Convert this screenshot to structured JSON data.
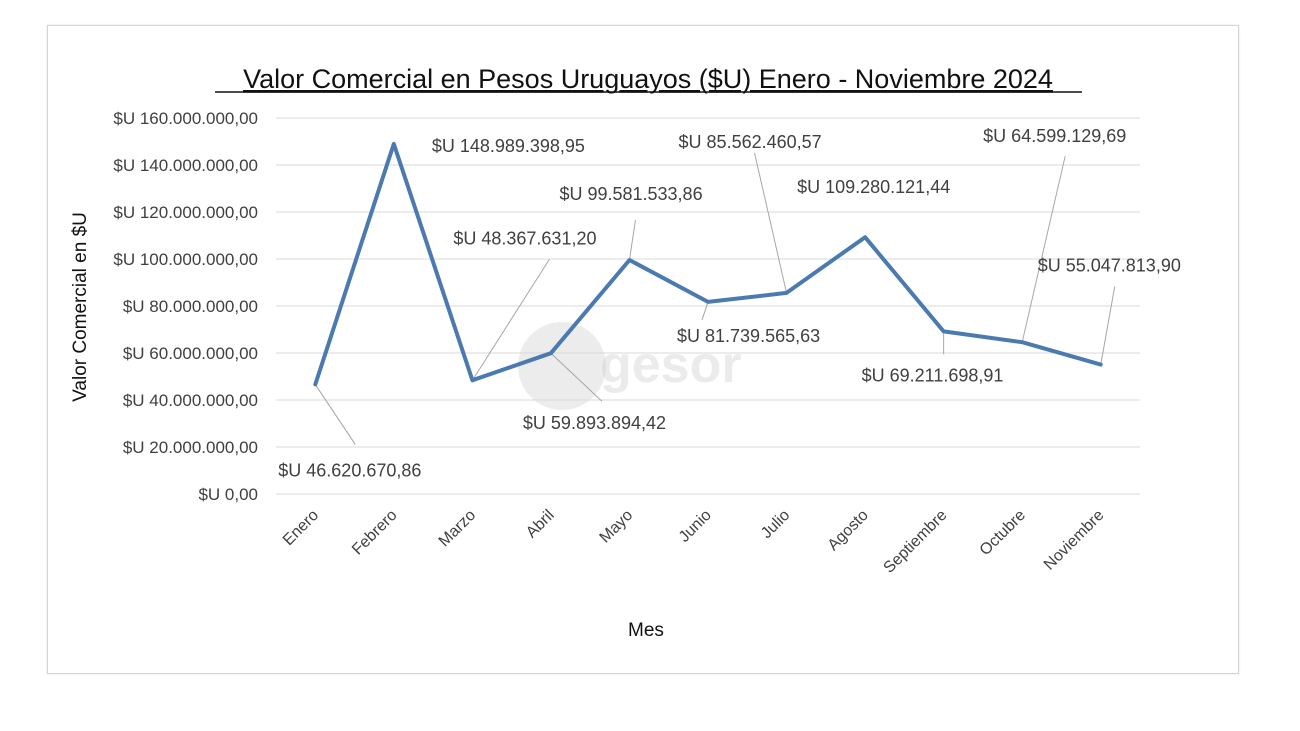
{
  "chart_data": {
    "type": "line",
    "title": "Valor Comercial en Pesos Uruguayos ($U)  Enero - Noviembre 2024",
    "xlabel": "Mes",
    "ylabel": "Valor Comercial en $U",
    "ylim": [
      0,
      160000000
    ],
    "y_ticks": [
      "$U 0,00",
      "$U 20.000.000,00",
      "$U 40.000.000,00",
      "$U 60.000.000,00",
      "$U 80.000.000,00",
      "$U 100.000.000,00",
      "$U 120.000.000,00",
      "$U 140.000.000,00",
      "$U 160.000.000,00"
    ],
    "grid": true,
    "legend": "none",
    "categories": [
      "Enero",
      "Febrero",
      "Marzo",
      "Abril",
      "Mayo",
      "Junio",
      "Julio",
      "Agosto",
      "Septiembre",
      "Octubre",
      "Noviembre"
    ],
    "series": [
      {
        "values": [
          46620670.86,
          148989398.95,
          48367631.2,
          59893894.42,
          99581533.86,
          81739565.63,
          85562460.57,
          109280121.44,
          69211698.91,
          64599129.69,
          55047813.9
        ],
        "color": "#4a7ab0"
      }
    ],
    "data_labels": [
      "$U 46.620.670,86",
      "$U 148.989.398,95",
      "$U 48.367.631,20",
      "$U 59.893.894,42",
      "$U 99.581.533,86",
      "$U 81.739.565,63",
      "$U 85.562.460,57",
      "$U 109.280.121,44",
      "$U 69.211.698,91",
      "$U 64.599.129,69",
      "$U 55.047.813,90"
    ]
  },
  "watermark": {
    "text": "gesor",
    "icon": "at-sign-logo-icon"
  }
}
